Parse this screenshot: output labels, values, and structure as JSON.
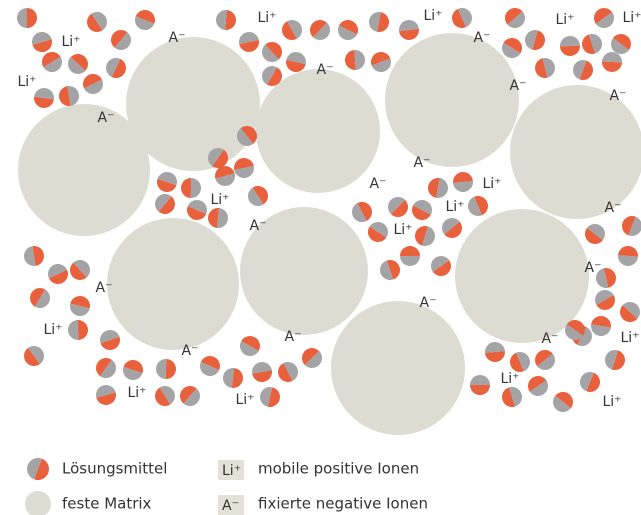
{
  "diagram": {
    "cation_labels": [
      "Li⁺",
      "Li⁺",
      "Li⁺",
      "Li⁺",
      "Li⁺",
      "Li⁺",
      "Li⁺",
      "Li⁺",
      "Li⁺",
      "Li⁺",
      "Li⁺",
      "Li⁺",
      "Li⁺",
      "Li⁺",
      "Li⁺",
      "Li⁺"
    ],
    "anion_labels": [
      "A⁻",
      "A⁻",
      "A⁻",
      "A⁻",
      "A⁻",
      "A⁻",
      "A⁻",
      "A⁻",
      "A⁻",
      "A⁻",
      "A⁻",
      "A⁻",
      "A⁻",
      "A⁻",
      "A⁻",
      "A⁻"
    ]
  },
  "legend": {
    "solvent": "Lösungsmittel",
    "matrix": "feste Matrix",
    "cation_icon": "Li⁺",
    "cation": "mobile positive Ionen",
    "anion_icon": "A⁻",
    "anion": "fixierte negative Ionen"
  }
}
